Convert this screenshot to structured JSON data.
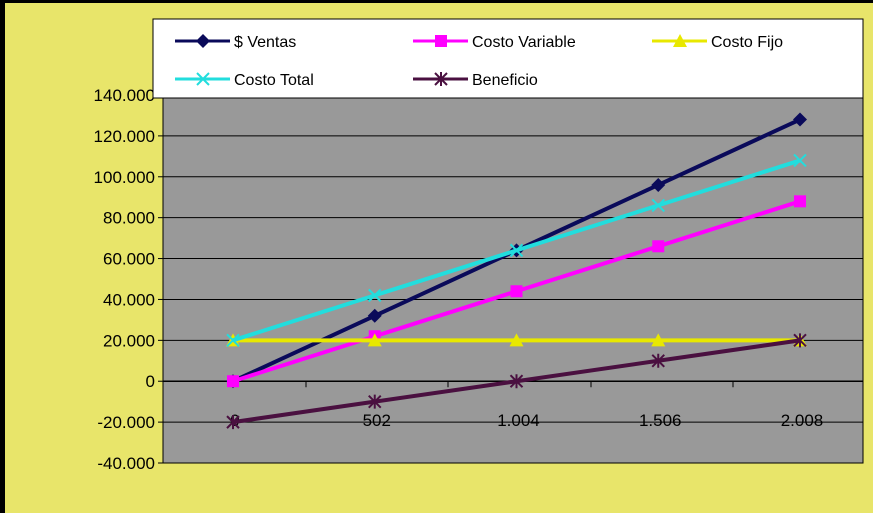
{
  "chart_data": {
    "type": "line",
    "title": "",
    "xlabel": "",
    "ylabel": "",
    "categories": [
      "0",
      "502",
      "1.004",
      "1.506",
      "2.008"
    ],
    "ylim": [
      -40000,
      140000
    ],
    "yticks": [
      "140.000",
      "120.000",
      "100.000",
      "80.000",
      "60.000",
      "40.000",
      "20.000",
      "0",
      "-20.000",
      "-40.000"
    ],
    "ytick_values": [
      140000,
      120000,
      100000,
      80000,
      60000,
      40000,
      20000,
      0,
      -20000,
      -40000
    ],
    "grid": "horizontal",
    "legend_position": "top",
    "series": [
      {
        "name": "$ Ventas",
        "values": [
          0,
          32000,
          64000,
          96000,
          128000
        ],
        "color": "#0a0a5a",
        "marker": "diamond"
      },
      {
        "name": "Costo Variable",
        "values": [
          0,
          22000,
          44000,
          66000,
          88000
        ],
        "color": "#ff00ff",
        "marker": "square"
      },
      {
        "name": "Costo Fijo",
        "values": [
          20000,
          20000,
          20000,
          20000,
          20000
        ],
        "color": "#e8e800",
        "marker": "triangle"
      },
      {
        "name": "Costo Total",
        "values": [
          20000,
          42000,
          64000,
          86000,
          108000
        ],
        "color": "#22dddd",
        "marker": "x"
      },
      {
        "name": "Beneficio",
        "values": [
          -20000,
          -10000,
          0,
          10000,
          20000
        ],
        "color": "#4a1040",
        "marker": "star"
      }
    ]
  },
  "colors": {
    "background": "#e8e56a",
    "plot_area": "#999999",
    "legend_background": "#ffffff"
  }
}
